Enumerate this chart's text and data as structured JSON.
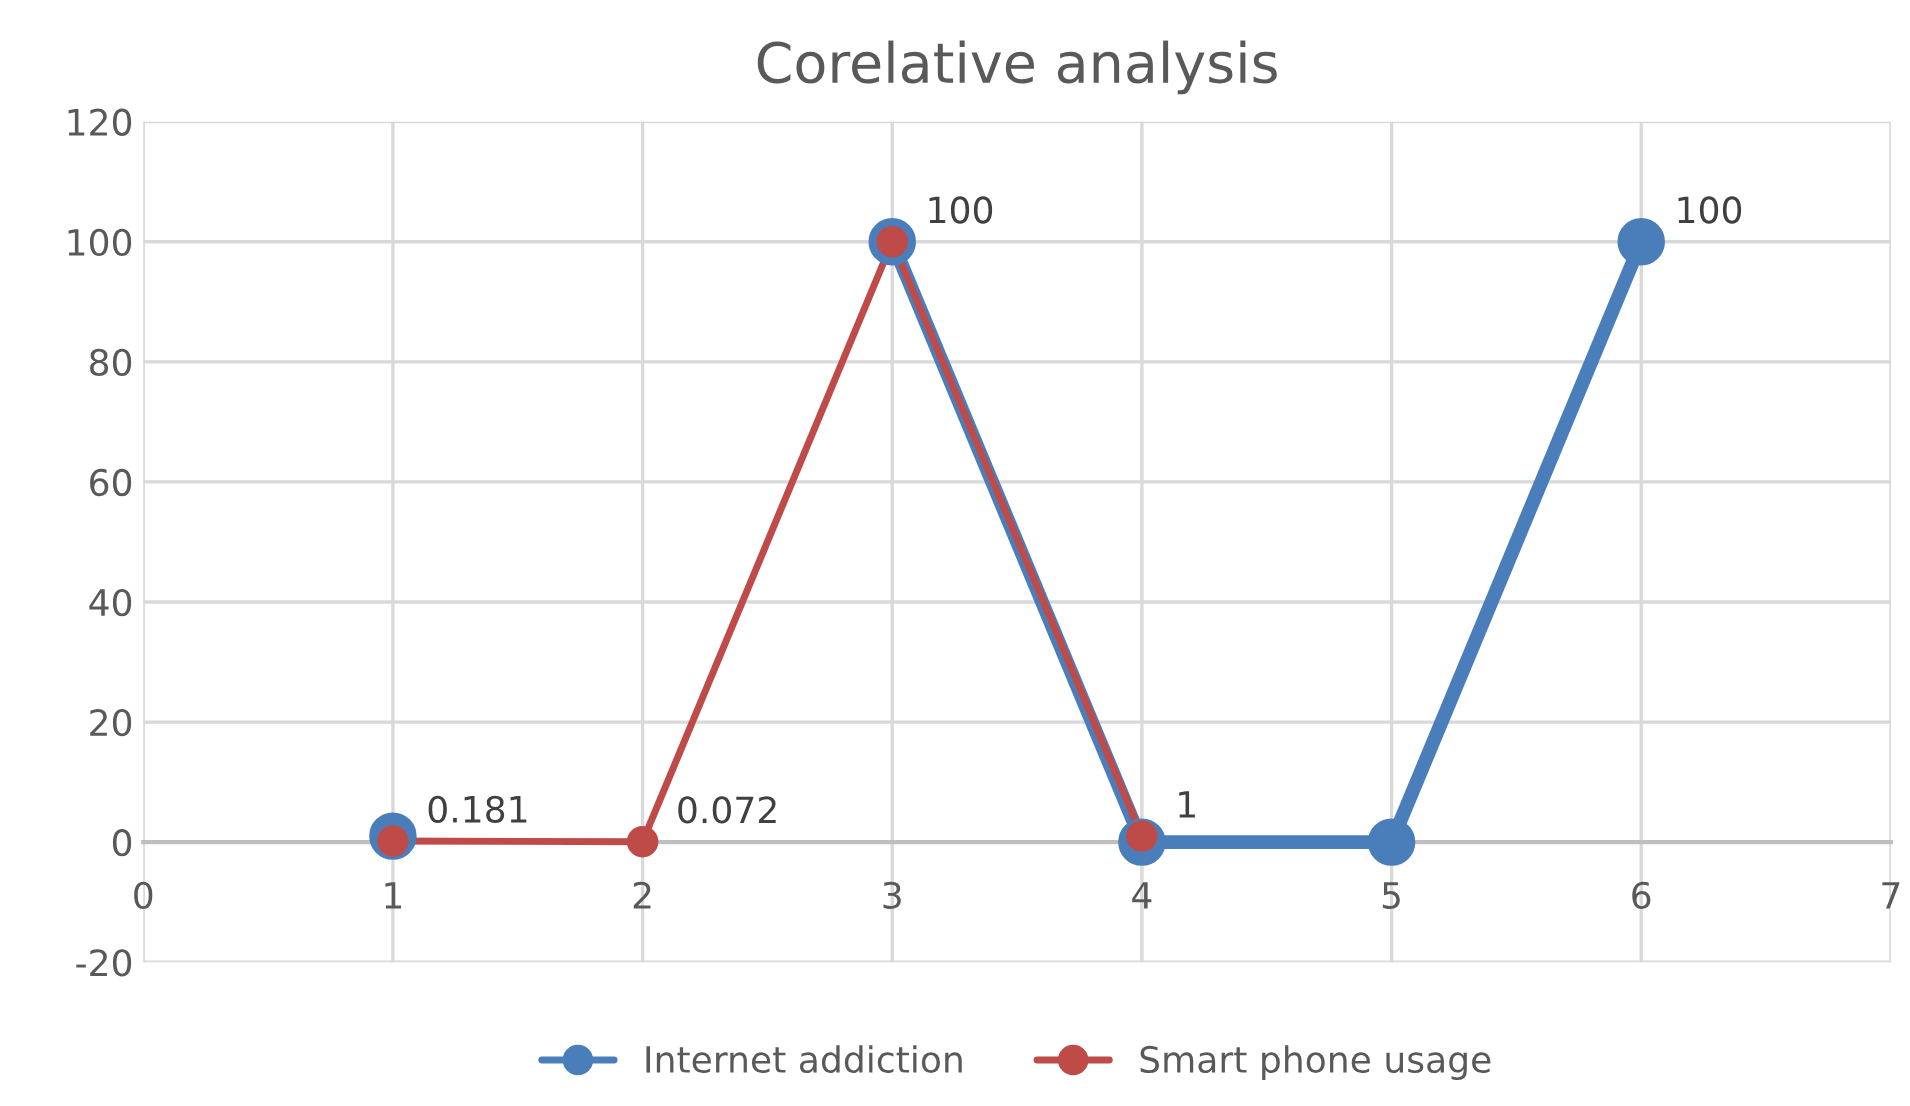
{
  "chart_data": {
    "type": "line",
    "title": "Corelative analysis",
    "x": [
      1,
      2,
      3,
      4,
      5,
      6
    ],
    "series": [
      {
        "name": "Internet addiction",
        "color": "#4a7ebb",
        "values": [
          1,
          null,
          100,
          0,
          0,
          100
        ],
        "value_labels": [
          null,
          null,
          null,
          null,
          null,
          "100"
        ]
      },
      {
        "name": "Smart phone usage",
        "color": "#be4b48",
        "values": [
          0.181,
          0.072,
          100,
          1,
          null,
          null
        ],
        "value_labels": [
          "0.181",
          "0.072",
          "100",
          "1",
          null,
          null
        ]
      }
    ],
    "xlim": [
      0,
      7
    ],
    "xticks": [
      0,
      1,
      2,
      3,
      4,
      5,
      6,
      7
    ],
    "ylim": [
      -20,
      120
    ],
    "yticks": [
      -20,
      0,
      20,
      40,
      60,
      80,
      100,
      120
    ],
    "grid": true,
    "legend": "bottom",
    "marker": "circle",
    "line_style": "solid"
  }
}
